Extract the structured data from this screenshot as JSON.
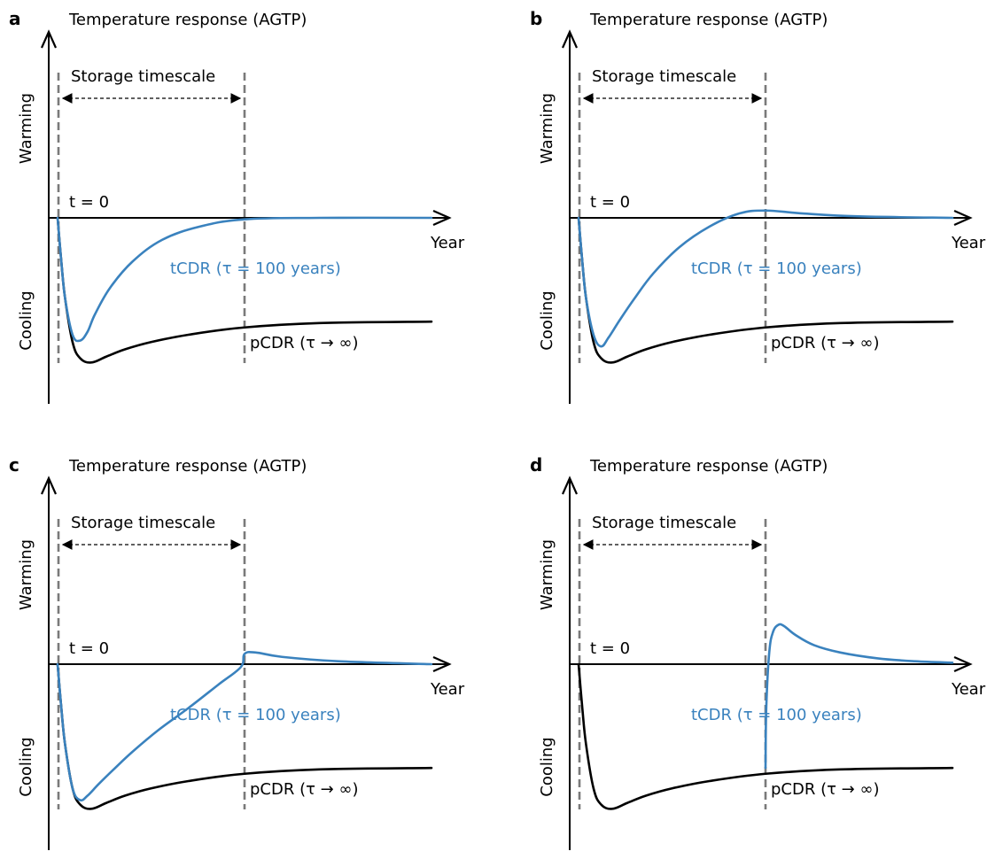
{
  "chart_data": [
    {
      "panel": "a",
      "type": "line",
      "title": "Temperature response (AGTP)",
      "xlabel": "Year",
      "ylabel_top": "Warming",
      "ylabel_bottom": "Cooling",
      "t0_label": "t = 0",
      "storage_label": "Storage timescale",
      "tcdr_label": "tCDR (τ = 100 years)",
      "pcdr_label": "pCDR (τ → ∞)",
      "series": [
        {
          "name": "pCDR",
          "color": "#000000",
          "x": [
            0,
            0.01,
            0.02,
            0.04,
            0.06,
            0.09,
            0.13,
            0.18,
            0.25,
            0.35,
            0.5,
            0.7,
            1.0
          ],
          "y": [
            0,
            -0.3,
            -0.55,
            -0.85,
            -0.96,
            -0.99,
            -0.95,
            -0.9,
            -0.85,
            -0.8,
            -0.75,
            -0.72,
            -0.71
          ]
        },
        {
          "name": "tCDR",
          "color": "#3a82be",
          "x": [
            0,
            0.01,
            0.02,
            0.04,
            0.06,
            0.08,
            0.1,
            0.14,
            0.2,
            0.28,
            0.38,
            0.5,
            0.7,
            1.0
          ],
          "y": [
            0,
            -0.3,
            -0.55,
            -0.8,
            -0.84,
            -0.78,
            -0.66,
            -0.48,
            -0.3,
            -0.15,
            -0.06,
            -0.01,
            0,
            0
          ]
        }
      ]
    },
    {
      "panel": "b",
      "type": "line",
      "title": "Temperature response (AGTP)",
      "xlabel": "Year",
      "ylabel_top": "Warming",
      "ylabel_bottom": "Cooling",
      "t0_label": "t = 0",
      "storage_label": "Storage timescale",
      "tcdr_label": "tCDR (τ = 100 years)",
      "pcdr_label": "pCDR (τ → ∞)",
      "series": [
        {
          "name": "pCDR",
          "color": "#000000",
          "x": [
            0,
            0.01,
            0.02,
            0.04,
            0.06,
            0.09,
            0.13,
            0.18,
            0.25,
            0.35,
            0.5,
            0.7,
            1.0
          ],
          "y": [
            0,
            -0.3,
            -0.55,
            -0.85,
            -0.96,
            -0.99,
            -0.95,
            -0.9,
            -0.85,
            -0.8,
            -0.75,
            -0.72,
            -0.71
          ]
        },
        {
          "name": "tCDR",
          "color": "#3a82be",
          "x": [
            0,
            0.01,
            0.02,
            0.04,
            0.06,
            0.08,
            0.11,
            0.15,
            0.2,
            0.27,
            0.35,
            0.43,
            0.5,
            0.6,
            0.75,
            1.0
          ],
          "y": [
            0,
            -0.3,
            -0.55,
            -0.8,
            -0.88,
            -0.82,
            -0.7,
            -0.55,
            -0.38,
            -0.2,
            -0.06,
            0.03,
            0.05,
            0.03,
            0.01,
            0
          ]
        }
      ]
    },
    {
      "panel": "c",
      "type": "line",
      "title": "Temperature response (AGTP)",
      "xlabel": "Year",
      "ylabel_top": "Warming",
      "ylabel_bottom": "Cooling",
      "t0_label": "t = 0",
      "storage_label": "Storage timescale",
      "tcdr_label": "tCDR (τ = 100 years)",
      "pcdr_label": "pCDR (τ → ∞)",
      "series": [
        {
          "name": "pCDR",
          "color": "#000000",
          "x": [
            0,
            0.01,
            0.02,
            0.04,
            0.06,
            0.09,
            0.13,
            0.18,
            0.25,
            0.35,
            0.5,
            0.7,
            1.0
          ],
          "y": [
            0,
            -0.3,
            -0.55,
            -0.85,
            -0.96,
            -0.99,
            -0.95,
            -0.9,
            -0.85,
            -0.8,
            -0.75,
            -0.72,
            -0.71
          ]
        },
        {
          "name": "tCDR",
          "color": "#3a82be",
          "x": [
            0,
            0.01,
            0.02,
            0.04,
            0.06,
            0.08,
            0.11,
            0.15,
            0.2,
            0.27,
            0.35,
            0.43,
            0.49,
            0.5,
            0.53,
            0.6,
            0.75,
            1.0
          ],
          "y": [
            0,
            -0.3,
            -0.55,
            -0.85,
            -0.93,
            -0.9,
            -0.82,
            -0.72,
            -0.6,
            -0.45,
            -0.3,
            -0.14,
            -0.02,
            0.07,
            0.08,
            0.05,
            0.02,
            0
          ]
        }
      ]
    },
    {
      "panel": "d",
      "type": "line",
      "title": "Temperature response (AGTP)",
      "xlabel": "Year",
      "ylabel_top": "Warming",
      "ylabel_bottom": "Cooling",
      "t0_label": "t = 0",
      "storage_label": "Storage timescale",
      "tcdr_label": "tCDR (τ = 100 years)",
      "pcdr_label": "pCDR (τ → ∞)",
      "series": [
        {
          "name": "pCDR",
          "color": "#000000",
          "x": [
            0,
            0.01,
            0.02,
            0.04,
            0.06,
            0.09,
            0.13,
            0.18,
            0.25,
            0.35,
            0.5,
            0.7,
            1.0
          ],
          "y": [
            0,
            -0.3,
            -0.55,
            -0.85,
            -0.96,
            -0.99,
            -0.95,
            -0.9,
            -0.85,
            -0.8,
            -0.75,
            -0.72,
            -0.71
          ]
        },
        {
          "name": "tCDR",
          "color": "#3a82be",
          "x": [
            0.5,
            0.502,
            0.51,
            0.52,
            0.535,
            0.55,
            0.58,
            0.63,
            0.7,
            0.8,
            0.9,
            1.0
          ],
          "y": [
            -0.71,
            -0.3,
            0.08,
            0.22,
            0.27,
            0.26,
            0.2,
            0.13,
            0.08,
            0.04,
            0.02,
            0.01
          ]
        }
      ]
    }
  ]
}
